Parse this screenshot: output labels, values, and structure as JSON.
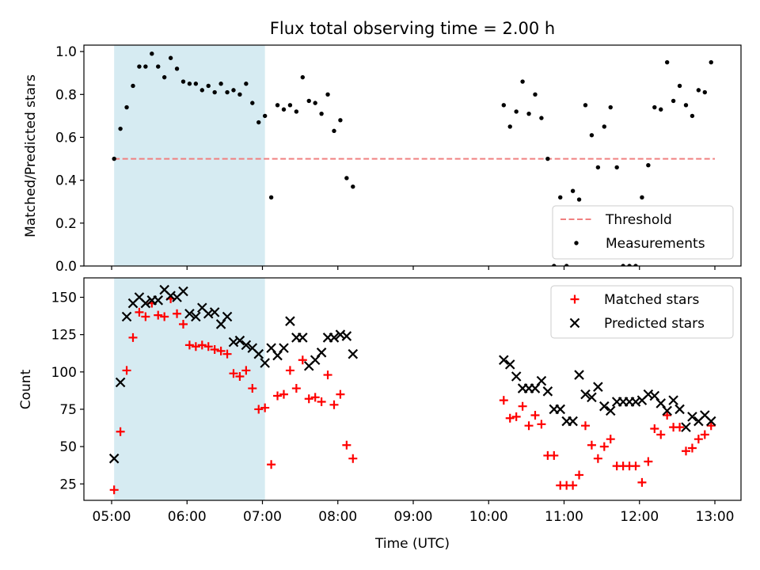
{
  "chart_data": {
    "type": "scatter",
    "title": "Flux total observing time = 2.00 h",
    "xlabel": "Time (UTC)",
    "x_ticks": [
      "05:00",
      "06:00",
      "07:00",
      "08:00",
      "09:00",
      "10:00",
      "11:00",
      "12:00",
      "13:00"
    ],
    "shaded_interval": [
      "05:02",
      "07:02"
    ],
    "shade_color": "#add8e6",
    "panels": [
      {
        "ylabel": "Matched/Predicted stars",
        "ylim": [
          0,
          1.03
        ],
        "y_ticks": [
          "0.0",
          "0.2",
          "0.4",
          "0.6",
          "0.8",
          "1.0"
        ],
        "legend_position": "lower right",
        "threshold": {
          "name": "Threshold",
          "value": 0.5,
          "color": "#f08080",
          "style": "dashed",
          "x_range": [
            "05:02",
            "13:00"
          ]
        },
        "series": [
          {
            "name": "Measurements",
            "marker": "dot",
            "color": "#000000",
            "points": [
              [
                "05:02",
                0.5
              ],
              [
                "05:07",
                0.64
              ],
              [
                "05:12",
                0.74
              ],
              [
                "05:17",
                0.84
              ],
              [
                "05:22",
                0.93
              ],
              [
                "05:27",
                0.93
              ],
              [
                "05:32",
                0.99
              ],
              [
                "05:37",
                0.93
              ],
              [
                "05:42",
                0.88
              ],
              [
                "05:47",
                0.97
              ],
              [
                "05:52",
                0.92
              ],
              [
                "05:57",
                0.86
              ],
              [
                "06:02",
                0.85
              ],
              [
                "06:07",
                0.85
              ],
              [
                "06:12",
                0.82
              ],
              [
                "06:17",
                0.84
              ],
              [
                "06:22",
                0.81
              ],
              [
                "06:27",
                0.85
              ],
              [
                "06:32",
                0.81
              ],
              [
                "06:37",
                0.82
              ],
              [
                "06:42",
                0.8
              ],
              [
                "06:47",
                0.85
              ],
              [
                "06:52",
                0.76
              ],
              [
                "06:57",
                0.67
              ],
              [
                "07:02",
                0.7
              ],
              [
                "07:07",
                0.32
              ],
              [
                "07:12",
                0.75
              ],
              [
                "07:17",
                0.73
              ],
              [
                "07:22",
                0.75
              ],
              [
                "07:27",
                0.72
              ],
              [
                "07:32",
                0.88
              ],
              [
                "07:37",
                0.77
              ],
              [
                "07:42",
                0.76
              ],
              [
                "07:47",
                0.71
              ],
              [
                "07:52",
                0.8
              ],
              [
                "07:57",
                0.63
              ],
              [
                "08:02",
                0.68
              ],
              [
                "08:07",
                0.41
              ],
              [
                "08:12",
                0.37
              ],
              [
                "10:12",
                0.75
              ],
              [
                "10:17",
                0.65
              ],
              [
                "10:22",
                0.72
              ],
              [
                "10:27",
                0.86
              ],
              [
                "10:32",
                0.71
              ],
              [
                "10:37",
                0.8
              ],
              [
                "10:42",
                0.69
              ],
              [
                "10:47",
                0.5
              ],
              [
                "10:52",
                0.0
              ],
              [
                "10:57",
                0.32
              ],
              [
                "11:02",
                0.0
              ],
              [
                "11:07",
                0.35
              ],
              [
                "11:12",
                0.31
              ],
              [
                "11:17",
                0.75
              ],
              [
                "11:22",
                0.61
              ],
              [
                "11:27",
                0.46
              ],
              [
                "11:32",
                0.65
              ],
              [
                "11:37",
                0.74
              ],
              [
                "11:42",
                0.46
              ],
              [
                "11:47",
                0.0
              ],
              [
                "11:52",
                0.0
              ],
              [
                "11:57",
                0.0
              ],
              [
                "12:02",
                0.32
              ],
              [
                "12:07",
                0.47
              ],
              [
                "12:12",
                0.74
              ],
              [
                "12:17",
                0.73
              ],
              [
                "12:22",
                0.95
              ],
              [
                "12:27",
                0.77
              ],
              [
                "12:32",
                0.84
              ],
              [
                "12:37",
                0.75
              ],
              [
                "12:42",
                0.7
              ],
              [
                "12:47",
                0.82
              ],
              [
                "12:52",
                0.81
              ],
              [
                "12:57",
                0.95
              ]
            ]
          }
        ]
      },
      {
        "ylabel": "Count",
        "ylim": [
          14,
          163
        ],
        "y_ticks": [
          "25",
          "50",
          "75",
          "100",
          "125",
          "150"
        ],
        "legend_position": "upper right",
        "series": [
          {
            "name": "Matched stars",
            "marker": "plus",
            "color": "#ff0000",
            "points": [
              [
                "05:02",
                21
              ],
              [
                "05:07",
                60
              ],
              [
                "05:12",
                101
              ],
              [
                "05:17",
                123
              ],
              [
                "05:22",
                140
              ],
              [
                "05:27",
                137
              ],
              [
                "05:32",
                146
              ],
              [
                "05:37",
                138
              ],
              [
                "05:42",
                137
              ],
              [
                "05:47",
                149
              ],
              [
                "05:52",
                139
              ],
              [
                "05:57",
                132
              ],
              [
                "06:02",
                118
              ],
              [
                "06:07",
                117
              ],
              [
                "06:12",
                118
              ],
              [
                "06:17",
                117
              ],
              [
                "06:22",
                115
              ],
              [
                "06:27",
                114
              ],
              [
                "06:32",
                112
              ],
              [
                "06:37",
                99
              ],
              [
                "06:42",
                97
              ],
              [
                "06:47",
                101
              ],
              [
                "06:52",
                89
              ],
              [
                "06:57",
                75
              ],
              [
                "07:02",
                76
              ],
              [
                "07:07",
                38
              ],
              [
                "07:12",
                84
              ],
              [
                "07:17",
                85
              ],
              [
                "07:22",
                101
              ],
              [
                "07:27",
                89
              ],
              [
                "07:32",
                108
              ],
              [
                "07:37",
                82
              ],
              [
                "07:42",
                83
              ],
              [
                "07:47",
                80
              ],
              [
                "07:52",
                98
              ],
              [
                "07:57",
                78
              ],
              [
                "08:02",
                85
              ],
              [
                "08:07",
                51
              ],
              [
                "08:12",
                42
              ],
              [
                "10:12",
                81
              ],
              [
                "10:17",
                69
              ],
              [
                "10:22",
                70
              ],
              [
                "10:27",
                77
              ],
              [
                "10:32",
                64
              ],
              [
                "10:37",
                71
              ],
              [
                "10:42",
                65
              ],
              [
                "10:47",
                44
              ],
              [
                "10:52",
                44
              ],
              [
                "10:57",
                24
              ],
              [
                "11:02",
                24
              ],
              [
                "11:07",
                24
              ],
              [
                "11:12",
                31
              ],
              [
                "11:17",
                64
              ],
              [
                "11:22",
                51
              ],
              [
                "11:27",
                42
              ],
              [
                "11:32",
                50
              ],
              [
                "11:37",
                55
              ],
              [
                "11:42",
                37
              ],
              [
                "11:47",
                37
              ],
              [
                "11:52",
                37
              ],
              [
                "11:57",
                37
              ],
              [
                "12:02",
                26
              ],
              [
                "12:07",
                40
              ],
              [
                "12:12",
                62
              ],
              [
                "12:17",
                58
              ],
              [
                "12:22",
                71
              ],
              [
                "12:27",
                63
              ],
              [
                "12:32",
                63
              ],
              [
                "12:37",
                47
              ],
              [
                "12:42",
                49
              ],
              [
                "12:47",
                55
              ],
              [
                "12:52",
                58
              ],
              [
                "12:57",
                64
              ]
            ]
          },
          {
            "name": "Predicted stars",
            "marker": "x",
            "color": "#000000",
            "points": [
              [
                "05:02",
                42
              ],
              [
                "05:07",
                93
              ],
              [
                "05:12",
                137
              ],
              [
                "05:17",
                146
              ],
              [
                "05:22",
                150
              ],
              [
                "05:27",
                146
              ],
              [
                "05:32",
                148
              ],
              [
                "05:37",
                148
              ],
              [
                "05:42",
                155
              ],
              [
                "05:47",
                151
              ],
              [
                "05:52",
                150
              ],
              [
                "05:57",
                154
              ],
              [
                "06:02",
                139
              ],
              [
                "06:07",
                137
              ],
              [
                "06:12",
                143
              ],
              [
                "06:17",
                139
              ],
              [
                "06:22",
                140
              ],
              [
                "06:27",
                132
              ],
              [
                "06:32",
                137
              ],
              [
                "06:37",
                120
              ],
              [
                "06:42",
                121
              ],
              [
                "06:47",
                118
              ],
              [
                "06:52",
                116
              ],
              [
                "06:57",
                112
              ],
              [
                "07:02",
                106
              ],
              [
                "07:07",
                116
              ],
              [
                "07:12",
                111
              ],
              [
                "07:17",
                116
              ],
              [
                "07:22",
                134
              ],
              [
                "07:27",
                123
              ],
              [
                "07:32",
                123
              ],
              [
                "07:37",
                104
              ],
              [
                "07:42",
                108
              ],
              [
                "07:47",
                113
              ],
              [
                "07:52",
                123
              ],
              [
                "07:57",
                123
              ],
              [
                "08:02",
                125
              ],
              [
                "08:07",
                124
              ],
              [
                "08:12",
                112
              ],
              [
                "10:12",
                108
              ],
              [
                "10:17",
                105
              ],
              [
                "10:22",
                97
              ],
              [
                "10:27",
                89
              ],
              [
                "10:32",
                89
              ],
              [
                "10:37",
                89
              ],
              [
                "10:42",
                94
              ],
              [
                "10:47",
                87
              ],
              [
                "10:52",
                75
              ],
              [
                "10:57",
                75
              ],
              [
                "11:02",
                67
              ],
              [
                "11:07",
                67
              ],
              [
                "11:12",
                98
              ],
              [
                "11:17",
                85
              ],
              [
                "11:22",
                83
              ],
              [
                "11:27",
                90
              ],
              [
                "11:32",
                77
              ],
              [
                "11:37",
                74
              ],
              [
                "11:42",
                80
              ],
              [
                "11:47",
                80
              ],
              [
                "11:52",
                80
              ],
              [
                "11:57",
                80
              ],
              [
                "12:02",
                81
              ],
              [
                "12:07",
                85
              ],
              [
                "12:12",
                84
              ],
              [
                "12:17",
                79
              ],
              [
                "12:22",
                74
              ],
              [
                "12:27",
                81
              ],
              [
                "12:32",
                75
              ],
              [
                "12:37",
                63
              ],
              [
                "12:42",
                70
              ],
              [
                "12:47",
                67
              ],
              [
                "12:52",
                71
              ],
              [
                "12:57",
                67
              ]
            ]
          }
        ]
      }
    ]
  }
}
